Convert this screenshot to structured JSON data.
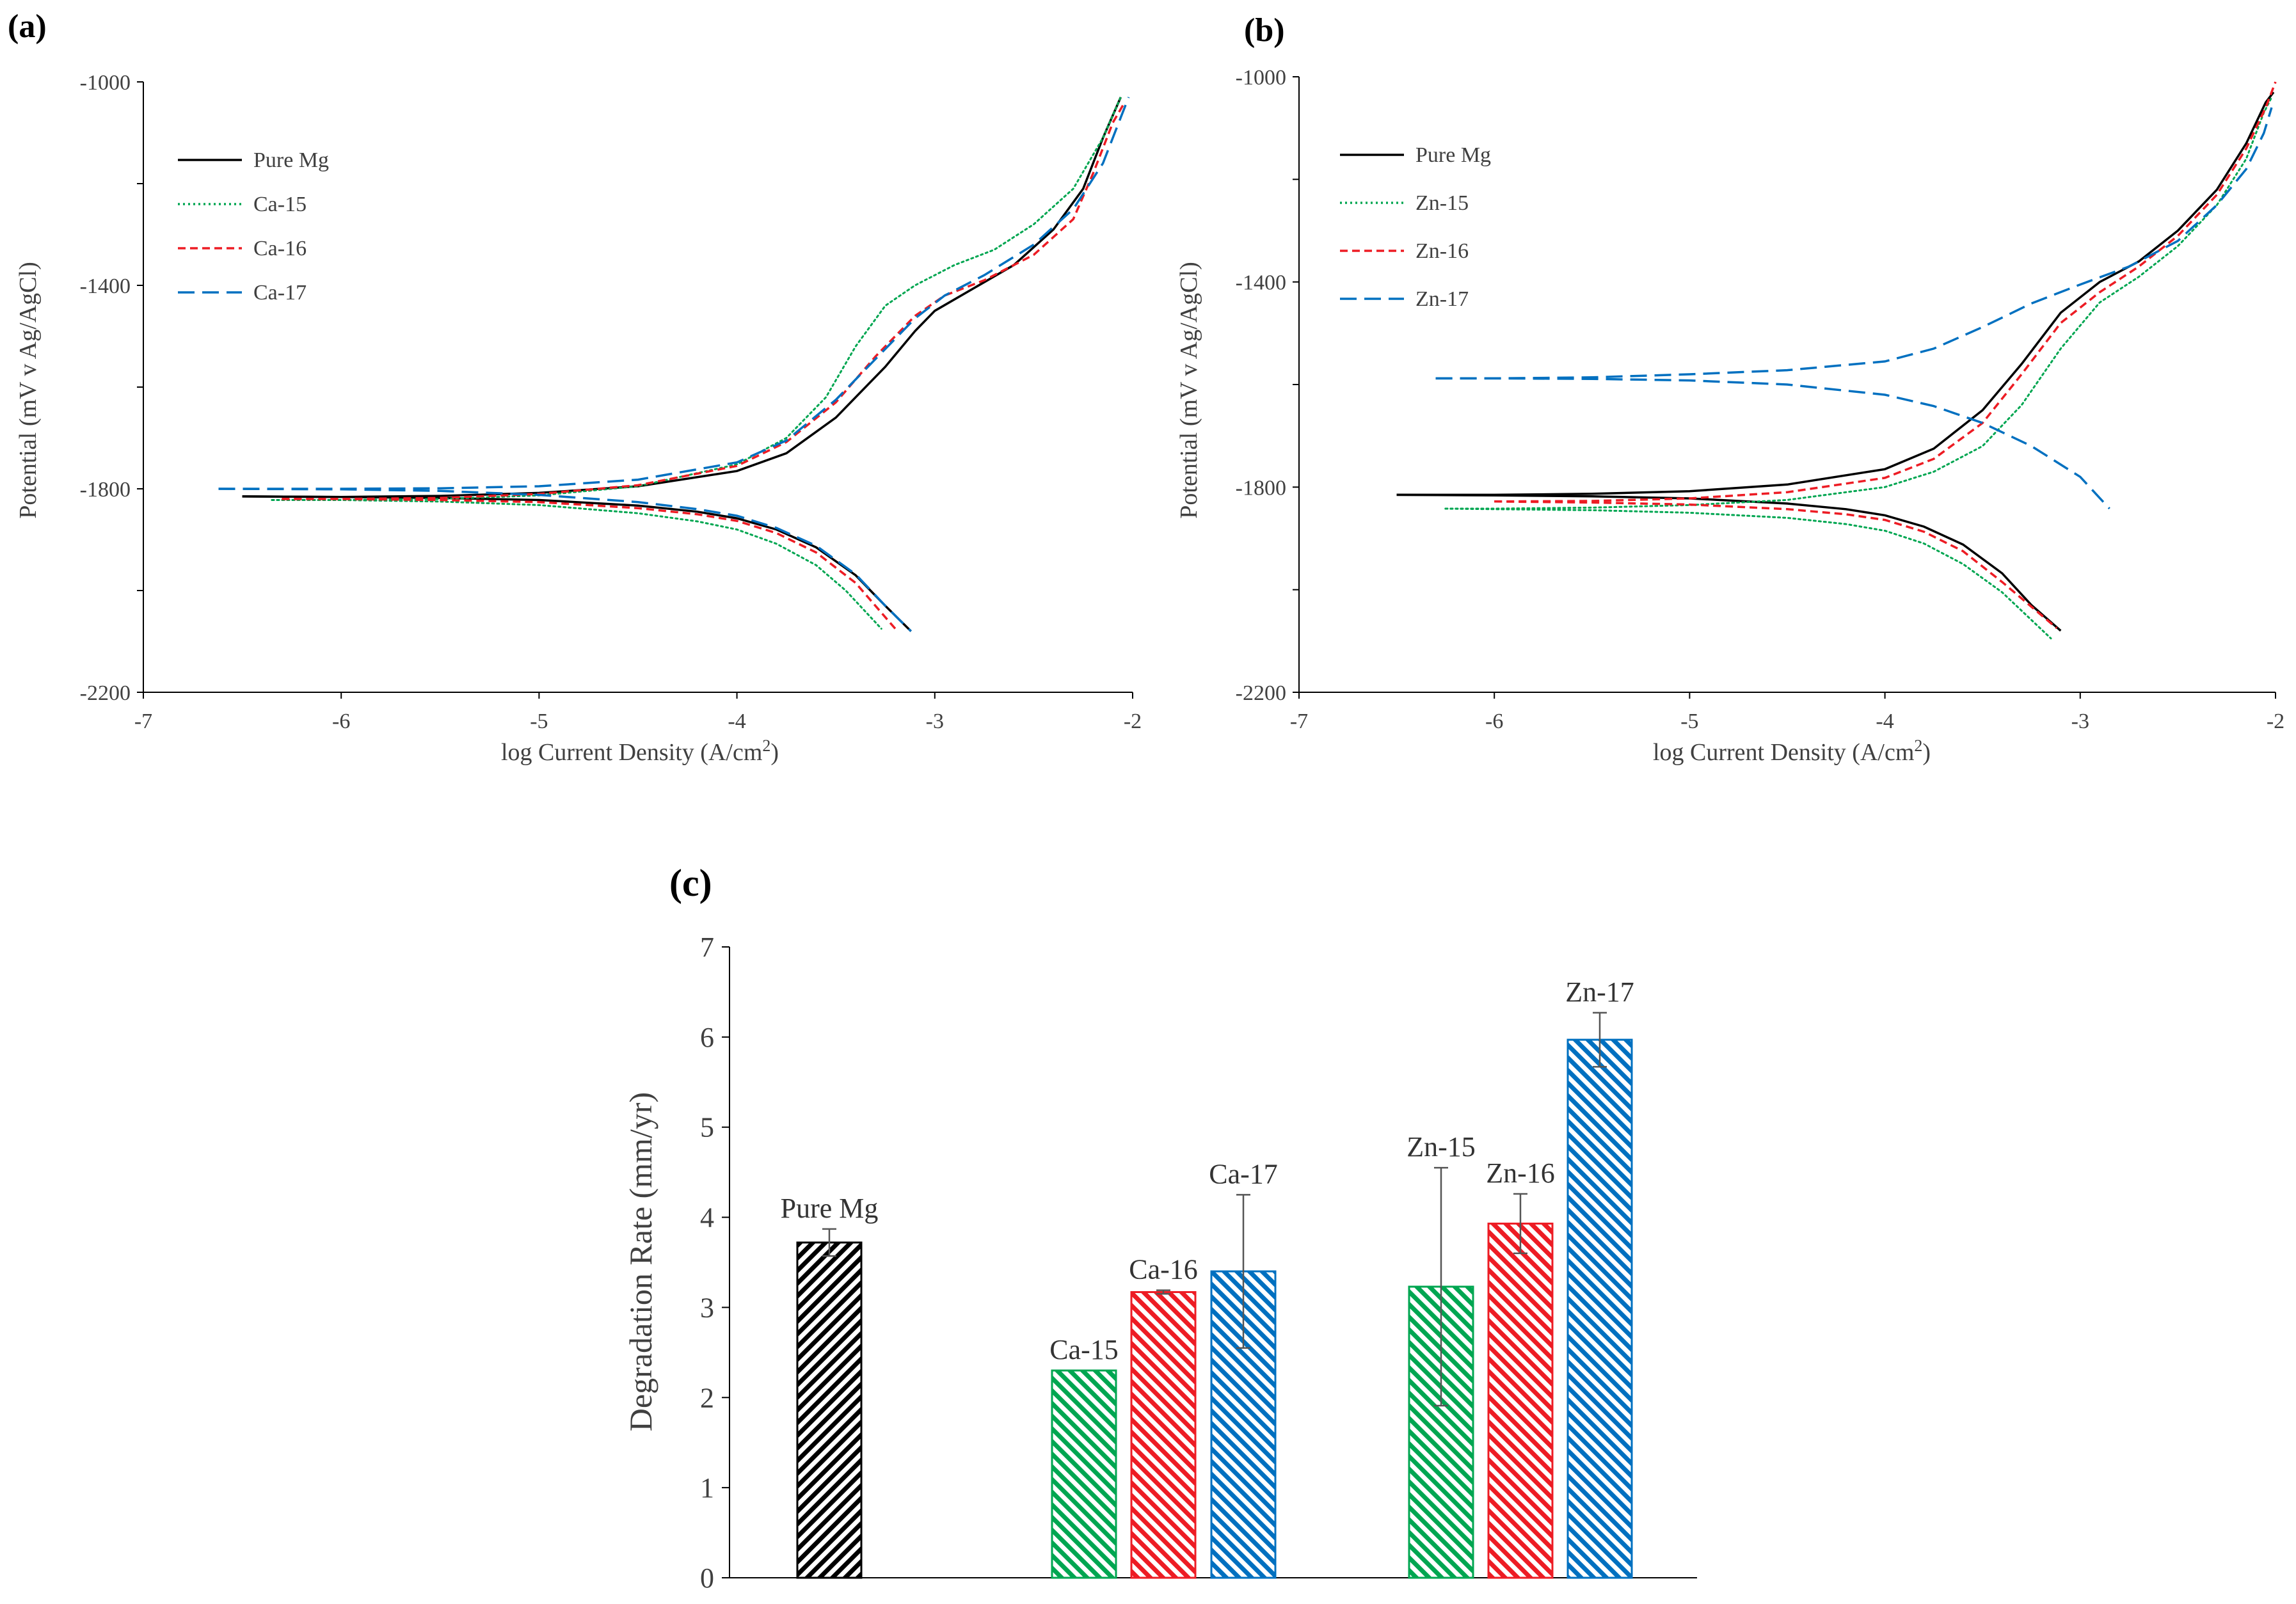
{
  "chart_data": [
    {
      "type": "line",
      "panel_label": "(a)",
      "xlabel": "log Current Density (A/cm",
      "xlabel_sup": "2",
      "xlabel_end": ")",
      "ylabel": "Potential (mV v Ag/AgCl)",
      "xlim": [
        -7,
        -2
      ],
      "ylim": [
        -2200,
        -1000
      ],
      "x_ticks": [
        "-7",
        "-6",
        "-5",
        "-4",
        "-3",
        "-2"
      ],
      "y_ticks": [
        "-1000",
        "-1400",
        "-1800",
        "-2200"
      ],
      "legend_position": "top-left",
      "series": [
        {
          "name": "Pure Mg",
          "color": "#000000",
          "style": "solid",
          "points": [
            [
              -6.5,
              -1815
            ],
            [
              -6,
              -1816
            ],
            [
              -5.5,
              -1814
            ],
            [
              -5,
              -1808
            ],
            [
              -4.5,
              -1795
            ],
            [
              -4,
              -1765
            ],
            [
              -3.75,
              -1730
            ],
            [
              -3.5,
              -1660
            ],
            [
              -3.25,
              -1560
            ],
            [
              -3.1,
              -1490
            ],
            [
              -3.0,
              -1450
            ],
            [
              -2.8,
              -1405
            ],
            [
              -2.6,
              -1360
            ],
            [
              -2.4,
              -1290
            ],
            [
              -2.25,
              -1210
            ],
            [
              -2.15,
              -1110
            ],
            [
              -2.06,
              -1030
            ]
          ],
          "cathodic": [
            [
              -6.5,
              -1815
            ],
            [
              -6,
              -1816
            ],
            [
              -5.5,
              -1818
            ],
            [
              -5,
              -1822
            ],
            [
              -4.5,
              -1833
            ],
            [
              -4.2,
              -1845
            ],
            [
              -4,
              -1858
            ],
            [
              -3.8,
              -1880
            ],
            [
              -3.6,
              -1915
            ],
            [
              -3.4,
              -1970
            ],
            [
              -3.25,
              -2030
            ],
            [
              -3.12,
              -2080
            ]
          ]
        },
        {
          "name": "Ca-15",
          "color": "#00a651",
          "style": "dotted",
          "points": [
            [
              -6.35,
              -1822
            ],
            [
              -6,
              -1822
            ],
            [
              -5.5,
              -1820
            ],
            [
              -5,
              -1813
            ],
            [
              -4.5,
              -1795
            ],
            [
              -4,
              -1752
            ],
            [
              -3.75,
              -1700
            ],
            [
              -3.55,
              -1620
            ],
            [
              -3.4,
              -1520
            ],
            [
              -3.25,
              -1440
            ],
            [
              -3.1,
              -1400
            ],
            [
              -2.9,
              -1360
            ],
            [
              -2.7,
              -1330
            ],
            [
              -2.5,
              -1280
            ],
            [
              -2.3,
              -1210
            ],
            [
              -2.15,
              -1110
            ],
            [
              -2.06,
              -1030
            ]
          ],
          "cathodic": [
            [
              -6.35,
              -1822
            ],
            [
              -6,
              -1822
            ],
            [
              -5.5,
              -1825
            ],
            [
              -5,
              -1832
            ],
            [
              -4.5,
              -1848
            ],
            [
              -4.2,
              -1864
            ],
            [
              -4,
              -1880
            ],
            [
              -3.8,
              -1908
            ],
            [
              -3.6,
              -1950
            ],
            [
              -3.45,
              -2000
            ],
            [
              -3.27,
              -2075
            ]
          ]
        },
        {
          "name": "Ca-16",
          "color": "#ed1c24",
          "style": "dashed",
          "points": [
            [
              -6.3,
              -1820
            ],
            [
              -6,
              -1820
            ],
            [
              -5.5,
              -1818
            ],
            [
              -5,
              -1810
            ],
            [
              -4.5,
              -1793
            ],
            [
              -4,
              -1755
            ],
            [
              -3.75,
              -1708
            ],
            [
              -3.5,
              -1630
            ],
            [
              -3.3,
              -1540
            ],
            [
              -3.1,
              -1460
            ],
            [
              -2.95,
              -1420
            ],
            [
              -2.75,
              -1390
            ],
            [
              -2.5,
              -1340
            ],
            [
              -2.3,
              -1270
            ],
            [
              -2.2,
              -1180
            ],
            [
              -2.1,
              -1080
            ],
            [
              -2.04,
              -1040
            ]
          ],
          "cathodic": [
            [
              -6.3,
              -1820
            ],
            [
              -6,
              -1820
            ],
            [
              -5.5,
              -1822
            ],
            [
              -5,
              -1826
            ],
            [
              -4.5,
              -1838
            ],
            [
              -4.2,
              -1850
            ],
            [
              -4,
              -1863
            ],
            [
              -3.8,
              -1887
            ],
            [
              -3.6,
              -1925
            ],
            [
              -3.4,
              -1985
            ],
            [
              -3.2,
              -2075
            ]
          ]
        },
        {
          "name": "Ca-17",
          "color": "#0070c0",
          "style": "longdash",
          "points": [
            [
              -6.62,
              -1800
            ],
            [
              -6,
              -1800
            ],
            [
              -5.5,
              -1799
            ],
            [
              -5,
              -1795
            ],
            [
              -4.5,
              -1782
            ],
            [
              -4,
              -1748
            ],
            [
              -3.75,
              -1705
            ],
            [
              -3.5,
              -1625
            ],
            [
              -3.3,
              -1545
            ],
            [
              -3.1,
              -1465
            ],
            [
              -2.95,
              -1420
            ],
            [
              -2.75,
              -1380
            ],
            [
              -2.5,
              -1320
            ],
            [
              -2.3,
              -1250
            ],
            [
              -2.15,
              -1160
            ],
            [
              -2.06,
              -1070
            ],
            [
              -2.02,
              -1030
            ]
          ],
          "cathodic": [
            [
              -6.62,
              -1800
            ],
            [
              -6,
              -1801
            ],
            [
              -5.5,
              -1804
            ],
            [
              -5,
              -1812
            ],
            [
              -4.5,
              -1826
            ],
            [
              -4.2,
              -1840
            ],
            [
              -4,
              -1853
            ],
            [
              -3.8,
              -1877
            ],
            [
              -3.6,
              -1912
            ],
            [
              -3.4,
              -1968
            ],
            [
              -3.25,
              -2030
            ],
            [
              -3.12,
              -2080
            ]
          ]
        }
      ]
    },
    {
      "type": "line",
      "panel_label": "(b)",
      "xlabel": "log Current Density (A/cm",
      "xlabel_sup": "2",
      "xlabel_end": ")",
      "ylabel": "Potential (mV v Ag/AgCl)",
      "xlim": [
        -7,
        -2
      ],
      "ylim": [
        -2200,
        -1000
      ],
      "x_ticks": [
        "-7",
        "-6",
        "-5",
        "-4",
        "-3",
        "-2"
      ],
      "y_ticks": [
        "-1000",
        "-1400",
        "-1800",
        "-2200"
      ],
      "legend_position": "top-left",
      "series": [
        {
          "name": "Pure Mg",
          "color": "#000000",
          "style": "solid",
          "points": [
            [
              -6.5,
              -1815
            ],
            [
              -6,
              -1815
            ],
            [
              -5.5,
              -1813
            ],
            [
              -5,
              -1808
            ],
            [
              -4.5,
              -1795
            ],
            [
              -4,
              -1765
            ],
            [
              -3.75,
              -1725
            ],
            [
              -3.5,
              -1650
            ],
            [
              -3.3,
              -1560
            ],
            [
              -3.1,
              -1460
            ],
            [
              -2.9,
              -1400
            ],
            [
              -2.7,
              -1360
            ],
            [
              -2.5,
              -1300
            ],
            [
              -2.3,
              -1220
            ],
            [
              -2.15,
              -1130
            ],
            [
              -2.05,
              -1050
            ],
            [
              -2.01,
              -1030
            ]
          ],
          "cathodic": [
            [
              -6.5,
              -1815
            ],
            [
              -6,
              -1816
            ],
            [
              -5.5,
              -1818
            ],
            [
              -5,
              -1822
            ],
            [
              -4.5,
              -1832
            ],
            [
              -4.2,
              -1843
            ],
            [
              -4,
              -1855
            ],
            [
              -3.8,
              -1877
            ],
            [
              -3.6,
              -1912
            ],
            [
              -3.4,
              -1968
            ],
            [
              -3.25,
              -2030
            ],
            [
              -3.1,
              -2080
            ]
          ]
        },
        {
          "name": "Zn-15",
          "color": "#00a651",
          "style": "dotted",
          "points": [
            [
              -6.25,
              -1842
            ],
            [
              -6,
              -1842
            ],
            [
              -5.5,
              -1840
            ],
            [
              -5,
              -1835
            ],
            [
              -4.5,
              -1825
            ],
            [
              -4,
              -1800
            ],
            [
              -3.75,
              -1770
            ],
            [
              -3.5,
              -1720
            ],
            [
              -3.3,
              -1640
            ],
            [
              -3.1,
              -1530
            ],
            [
              -2.9,
              -1440
            ],
            [
              -2.7,
              -1390
            ],
            [
              -2.5,
              -1330
            ],
            [
              -2.3,
              -1250
            ],
            [
              -2.15,
              -1160
            ],
            [
              -2.06,
              -1070
            ],
            [
              -2.02,
              -1040
            ]
          ],
          "cathodic": [
            [
              -6.25,
              -1842
            ],
            [
              -6,
              -1843
            ],
            [
              -5.5,
              -1845
            ],
            [
              -5,
              -1850
            ],
            [
              -4.5,
              -1860
            ],
            [
              -4.2,
              -1872
            ],
            [
              -4,
              -1885
            ],
            [
              -3.8,
              -1910
            ],
            [
              -3.6,
              -1950
            ],
            [
              -3.4,
              -2005
            ],
            [
              -3.15,
              -2095
            ]
          ]
        },
        {
          "name": "Zn-16",
          "color": "#ed1c24",
          "style": "dashed",
          "points": [
            [
              -6,
              -1828
            ],
            [
              -5.5,
              -1827
            ],
            [
              -5,
              -1822
            ],
            [
              -4.5,
              -1810
            ],
            [
              -4,
              -1782
            ],
            [
              -3.75,
              -1745
            ],
            [
              -3.5,
              -1675
            ],
            [
              -3.3,
              -1580
            ],
            [
              -3.1,
              -1480
            ],
            [
              -2.9,
              -1420
            ],
            [
              -2.7,
              -1370
            ],
            [
              -2.5,
              -1310
            ],
            [
              -2.3,
              -1230
            ],
            [
              -2.15,
              -1140
            ],
            [
              -2.05,
              -1060
            ],
            [
              -2.0,
              -1010
            ]
          ],
          "cathodic": [
            [
              -6,
              -1828
            ],
            [
              -5.5,
              -1830
            ],
            [
              -5,
              -1834
            ],
            [
              -4.5,
              -1843
            ],
            [
              -4.2,
              -1853
            ],
            [
              -4,
              -1864
            ],
            [
              -3.8,
              -1887
            ],
            [
              -3.6,
              -1925
            ],
            [
              -3.4,
              -1985
            ],
            [
              -3.12,
              -2075
            ]
          ]
        },
        {
          "name": "Zn-17",
          "color": "#0070c0",
          "style": "longdash",
          "points": [
            [
              -6.3,
              -1588
            ],
            [
              -6,
              -1588
            ],
            [
              -5.5,
              -1586
            ],
            [
              -5,
              -1580
            ],
            [
              -4.5,
              -1572
            ],
            [
              -4,
              -1555
            ],
            [
              -3.75,
              -1530
            ],
            [
              -3.5,
              -1488
            ],
            [
              -3.25,
              -1442
            ],
            [
              -3.0,
              -1405
            ],
            [
              -2.75,
              -1370
            ],
            [
              -2.5,
              -1320
            ],
            [
              -2.3,
              -1250
            ],
            [
              -2.15,
              -1180
            ],
            [
              -2.06,
              -1110
            ],
            [
              -2.02,
              -1060
            ]
          ],
          "cathodic": [
            [
              -6.3,
              -1588
            ],
            [
              -6,
              -1588
            ],
            [
              -5.5,
              -1589
            ],
            [
              -5,
              -1592
            ],
            [
              -4.5,
              -1600
            ],
            [
              -4,
              -1620
            ],
            [
              -3.75,
              -1642
            ],
            [
              -3.5,
              -1675
            ],
            [
              -3.25,
              -1720
            ],
            [
              -3.0,
              -1780
            ],
            [
              -2.85,
              -1842
            ]
          ]
        }
      ]
    },
    {
      "type": "bar",
      "panel_label": "(c)",
      "ylabel": "Degradation Rate (mm/yr)",
      "ylim": [
        0,
        7
      ],
      "y_ticks": [
        "0",
        "1",
        "2",
        "3",
        "4",
        "5",
        "6",
        "7"
      ],
      "bars": [
        {
          "label": "Pure Mg",
          "value": 3.72,
          "error": 0.15,
          "color": "#000000",
          "group": 0
        },
        {
          "label": "Ca-15",
          "value": 2.3,
          "error": 0.0,
          "color": "#00a651",
          "group": 1
        },
        {
          "label": "Ca-16",
          "value": 3.17,
          "error": 0.02,
          "color": "#ed1c24",
          "group": 1
        },
        {
          "label": "Ca-17",
          "value": 3.4,
          "error": 0.85,
          "color": "#0070c0",
          "group": 1
        },
        {
          "label": "Zn-15",
          "value": 3.23,
          "error": 1.32,
          "color": "#00a651",
          "group": 2
        },
        {
          "label": "Zn-16",
          "value": 3.93,
          "error": 0.33,
          "color": "#ed1c24",
          "group": 2
        },
        {
          "label": "Zn-17",
          "value": 5.97,
          "error": 0.3,
          "color": "#0070c0",
          "group": 2
        }
      ]
    }
  ]
}
